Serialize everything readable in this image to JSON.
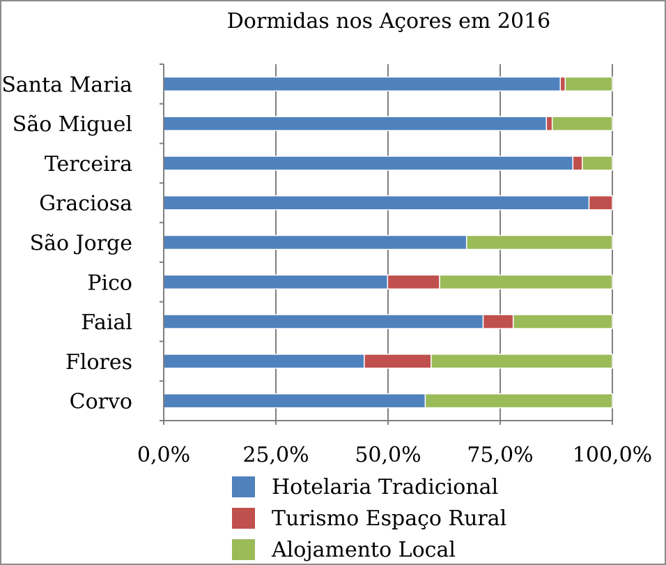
{
  "chart_data": {
    "type": "bar",
    "orientation": "horizontal",
    "stacked": true,
    "percent": true,
    "title": "Dormidas nos Açores em 2016",
    "xlabel": "",
    "ylabel": "",
    "xlim": [
      0,
      100
    ],
    "x_ticks": [
      "0,0%",
      "25,0%",
      "50,0%",
      "75,0%",
      "100,0%"
    ],
    "grid": true,
    "legend_position": "bottom",
    "categories": [
      "Santa Maria",
      "São Miguel",
      "Terceira",
      "Graciosa",
      "São Jorge",
      "Pico",
      "Faial",
      "Flores",
      "Corvo"
    ],
    "series": [
      {
        "name": "Hotelaria Tradicional",
        "color": "#4F81BD",
        "values": [
          88.4,
          85.3,
          91.2,
          94.8,
          67.5,
          49.9,
          71.2,
          44.7,
          58.3
        ]
      },
      {
        "name": "Turismo Espaço Rural",
        "color": "#C0504D",
        "values": [
          1.1,
          1.3,
          2.1,
          5.2,
          0.0,
          11.6,
          6.7,
          14.9,
          0.0
        ]
      },
      {
        "name": "Alojamento Local",
        "color": "#9BBB59",
        "values": [
          10.5,
          13.4,
          6.7,
          0.0,
          32.5,
          38.5,
          22.1,
          40.4,
          41.7
        ]
      }
    ]
  }
}
